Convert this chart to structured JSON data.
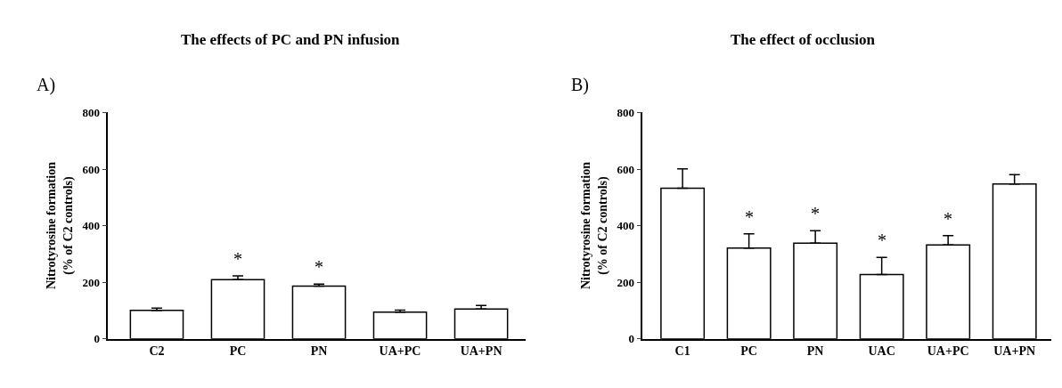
{
  "chart_data": [
    {
      "type": "bar",
      "title": "The effects of PC and PN infusion",
      "ylabel": "Nitrotyrosine formation\n(% of C2 controls)",
      "categories": [
        "C2",
        "PC",
        "PN",
        "UA+PC",
        "UA+PN"
      ],
      "values": [
        100,
        209,
        186,
        94,
        105
      ],
      "color": "#ffffff",
      "errors": [
        [
          100,
          108
        ],
        [
          209,
          222
        ],
        [
          186,
          193
        ],
        [
          94,
          101
        ],
        [
          105,
          118
        ]
      ],
      "ylim": [
        0,
        800
      ],
      "yticks": [
        0,
        200,
        400,
        600,
        800
      ],
      "value_labels": [
        null,
        "*",
        "*",
        null,
        null
      ],
      "annotations": [
        "A)"
      ]
    },
    {
      "type": "bar",
      "title": "The effect of occlusion",
      "ylabel": "Nitrotyrosine formation\n(% of C2 controls)",
      "categories": [
        "C1",
        "PC",
        "PN",
        "UAC",
        "UA+PC",
        "UA+PN"
      ],
      "values": [
        532,
        321,
        338,
        227,
        332,
        547
      ],
      "color": "#ffffff",
      "errors": [
        [
          532,
          601
        ],
        [
          321,
          371
        ],
        [
          338,
          382
        ],
        [
          227,
          288
        ],
        [
          332,
          365
        ],
        [
          547,
          580
        ]
      ],
      "ylim": [
        0,
        800
      ],
      "yticks": [
        0,
        200,
        400,
        600,
        800
      ],
      "value_labels": [
        null,
        "*",
        "*",
        "*",
        "*",
        null
      ],
      "annotations": [
        "B)"
      ]
    }
  ]
}
